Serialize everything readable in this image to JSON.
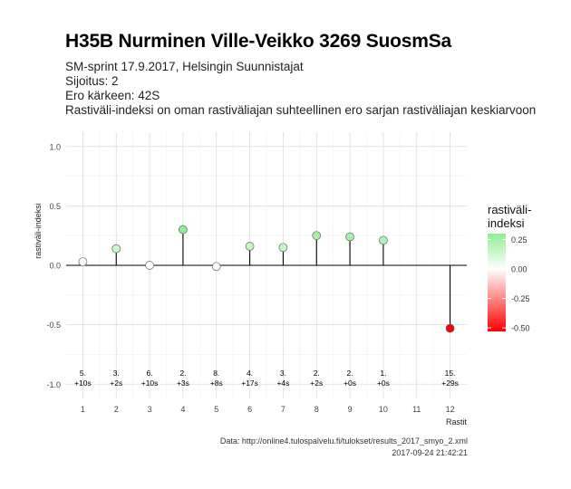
{
  "header": {
    "title": "H35B Nurminen Ville-Veikko 3269 SuosmSa",
    "subtitle_lines": [
      "SM-sprint 17.9.2017, Helsingin Suunnistajat",
      "Sijoitus: 2",
      "Ero kärkeen: 42S",
      "Rastiväli-indeksi on oman rastiväliajan suhteellinen ero sarjan rastiväliajan keskiarvoon"
    ]
  },
  "chart_data": {
    "type": "scatter",
    "style": "lollipop",
    "xlabel": "Rastit",
    "ylabel": "rastiväli-indeksi",
    "xlim": [
      0.5,
      12.5
    ],
    "ylim": [
      -1.0,
      1.0
    ],
    "x_ticks": [
      1,
      2,
      3,
      4,
      5,
      6,
      7,
      8,
      9,
      10,
      11,
      12
    ],
    "y_ticks": [
      -1.0,
      -0.5,
      0.0,
      0.5,
      1.0
    ],
    "y_tick_labels": [
      "-1.0",
      "-0.5",
      "0.0",
      "0.5",
      "1.0"
    ],
    "grid": true,
    "points": [
      {
        "x": 1,
        "y": 0.03,
        "label_rank": "5.",
        "label_diff": "+10s"
      },
      {
        "x": 2,
        "y": 0.14,
        "label_rank": "3.",
        "label_diff": "+2s"
      },
      {
        "x": 3,
        "y": 0.0,
        "label_rank": "6.",
        "label_diff": "+10s"
      },
      {
        "x": 4,
        "y": 0.3,
        "label_rank": "2.",
        "label_diff": "+3s"
      },
      {
        "x": 5,
        "y": -0.01,
        "label_rank": "8.",
        "label_diff": "+8s"
      },
      {
        "x": 6,
        "y": 0.16,
        "label_rank": "4.",
        "label_diff": "+17s"
      },
      {
        "x": 7,
        "y": 0.15,
        "label_rank": "3.",
        "label_diff": "+4s"
      },
      {
        "x": 8,
        "y": 0.25,
        "label_rank": "2.",
        "label_diff": "+2s"
      },
      {
        "x": 9,
        "y": 0.24,
        "label_rank": "2.",
        "label_diff": "+0s"
      },
      {
        "x": 10,
        "y": 0.21,
        "label_rank": "1.",
        "label_diff": "+0s"
      },
      {
        "x": 12,
        "y": -0.53,
        "label_rank": "15.",
        "label_diff": "+29s"
      }
    ],
    "legend": {
      "title_lines": [
        "rastiväli-",
        "indeksi"
      ],
      "placement": "right",
      "ticks": [
        0.25,
        0.0,
        -0.25,
        -0.5
      ],
      "tick_labels": [
        "0.25",
        "0.00",
        "-0.25",
        "-0.50"
      ],
      "range": [
        -0.53,
        0.3
      ],
      "colors": {
        "high": "#90ee90",
        "mid": "#ffffff",
        "low": "#ff0000"
      }
    }
  },
  "caption": {
    "source": "Data: http://online4.tulospalvelu.fi/tulokset/results_2017_smyo_2.xml",
    "timestamp": "2017-09-24 21:42:21"
  }
}
